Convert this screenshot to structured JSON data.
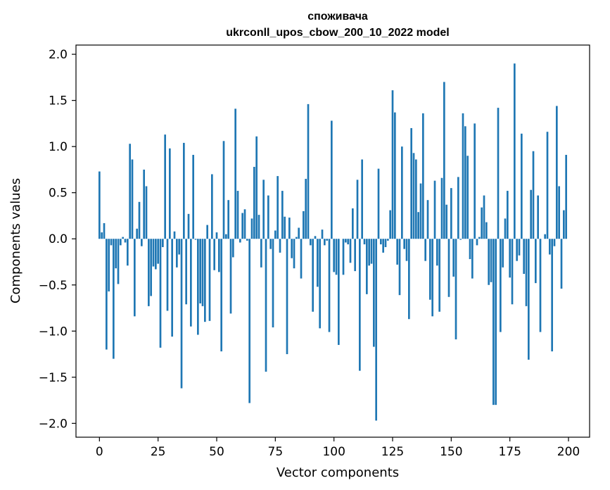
{
  "chart_data": {
    "type": "bar",
    "title": "споживача",
    "subtitle": "ukrconll_upos_cbow_200_10_2022 model",
    "xlabel": "Vector components",
    "ylabel": "Components values",
    "xlim": [
      -10,
      209
    ],
    "ylim": [
      -2.15,
      2.1
    ],
    "xticks": [
      0,
      25,
      50,
      75,
      100,
      125,
      150,
      175,
      200
    ],
    "yticks": [
      -2.0,
      -1.5,
      -1.0,
      -0.5,
      0.0,
      0.5,
      1.0,
      1.5,
      2.0
    ],
    "ytick_labels": [
      "−2.0",
      "−1.5",
      "−1.0",
      "−0.5",
      "0.0",
      "0.5",
      "1.0",
      "1.5",
      "2.0"
    ],
    "bar_color": "#1f77b4",
    "grid": false,
    "x": [
      0,
      1,
      2,
      3,
      4,
      5,
      6,
      7,
      8,
      9,
      10,
      11,
      12,
      13,
      14,
      15,
      16,
      17,
      18,
      19,
      20,
      21,
      22,
      23,
      24,
      25,
      26,
      27,
      28,
      29,
      30,
      31,
      32,
      33,
      34,
      35,
      36,
      37,
      38,
      39,
      40,
      41,
      42,
      43,
      44,
      45,
      46,
      47,
      48,
      49,
      50,
      51,
      52,
      53,
      54,
      55,
      56,
      57,
      58,
      59,
      60,
      61,
      62,
      63,
      64,
      65,
      66,
      67,
      68,
      69,
      70,
      71,
      72,
      73,
      74,
      75,
      76,
      77,
      78,
      79,
      80,
      81,
      82,
      83,
      84,
      85,
      86,
      87,
      88,
      89,
      90,
      91,
      92,
      93,
      94,
      95,
      96,
      97,
      98,
      99,
      100,
      101,
      102,
      103,
      104,
      105,
      106,
      107,
      108,
      109,
      110,
      111,
      112,
      113,
      114,
      115,
      116,
      117,
      118,
      119,
      120,
      121,
      122,
      123,
      124,
      125,
      126,
      127,
      128,
      129,
      130,
      131,
      132,
      133,
      134,
      135,
      136,
      137,
      138,
      139,
      140,
      141,
      142,
      143,
      144,
      145,
      146,
      147,
      148,
      149,
      150,
      151,
      152,
      153,
      154,
      155,
      156,
      157,
      158,
      159,
      160,
      161,
      162,
      163,
      164,
      165,
      166,
      167,
      168,
      169,
      170,
      171,
      172,
      173,
      174,
      175,
      176,
      177,
      178,
      179,
      180,
      181,
      182,
      183,
      184,
      185,
      186,
      187,
      188,
      189,
      190,
      191,
      192,
      193,
      194,
      195,
      196,
      197,
      198,
      199
    ],
    "values": [
      0.73,
      0.07,
      0.17,
      -1.2,
      -0.57,
      -0.07,
      -1.3,
      -0.32,
      -0.49,
      -0.07,
      0.02,
      -0.04,
      -0.29,
      1.03,
      0.86,
      -0.84,
      0.11,
      0.4,
      -0.08,
      0.75,
      0.57,
      -0.73,
      -0.62,
      -0.3,
      -0.33,
      -0.27,
      -1.18,
      -0.09,
      1.13,
      -0.78,
      0.98,
      -1.06,
      0.08,
      -0.31,
      -0.17,
      -1.62,
      1.04,
      -0.71,
      0.27,
      -0.95,
      0.91,
      -0.01,
      -1.04,
      -0.7,
      -0.73,
      -0.9,
      0.15,
      -0.89,
      0.7,
      -0.34,
      0.07,
      -0.36,
      -1.22,
      1.06,
      0.05,
      0.42,
      -0.81,
      -0.2,
      1.41,
      0.52,
      -0.04,
      0.28,
      0.32,
      -0.02,
      -1.78,
      0.22,
      0.78,
      1.11,
      0.26,
      -0.31,
      0.64,
      -1.44,
      0.47,
      -0.11,
      -0.96,
      0.09,
      0.68,
      -0.15,
      0.52,
      0.24,
      -1.25,
      0.23,
      -0.21,
      -0.32,
      0.02,
      0.12,
      -0.43,
      0.3,
      0.65,
      1.46,
      -0.07,
      -0.79,
      0.03,
      -0.52,
      -0.97,
      0.1,
      -0.07,
      -0.02,
      -1.01,
      1.28,
      -0.36,
      -0.39,
      -1.15,
      0.0,
      -0.39,
      -0.04,
      -0.06,
      -0.26,
      0.33,
      -0.35,
      0.64,
      -1.43,
      0.86,
      -0.06,
      -0.6,
      -0.29,
      -0.27,
      -1.17,
      -1.97,
      0.76,
      -0.06,
      -0.15,
      -0.09,
      -0.02,
      0.31,
      1.61,
      1.37,
      -0.28,
      -0.61,
      1.0,
      -0.11,
      -0.24,
      -0.87,
      1.2,
      0.93,
      0.86,
      0.29,
      0.6,
      1.36,
      -0.24,
      0.42,
      -0.66,
      -0.84,
      0.63,
      -0.29,
      -0.79,
      0.66,
      1.7,
      0.37,
      -0.63,
      0.55,
      -0.41,
      -1.09,
      0.67,
      -0.01,
      1.36,
      1.22,
      0.9,
      -0.22,
      -0.43,
      1.25,
      -0.07,
      0.02,
      0.34,
      0.47,
      0.18,
      -0.5,
      -0.47,
      -1.8,
      -1.8,
      1.42,
      -1.01,
      -0.31,
      0.22,
      0.52,
      -0.42,
      -0.71,
      1.9,
      -0.24,
      -0.18,
      1.14,
      -0.38,
      -0.73,
      -1.31,
      0.53,
      0.95,
      -0.48,
      0.47,
      -1.01,
      0.0,
      0.05,
      1.16,
      -0.17,
      -1.22,
      -0.08,
      1.44,
      0.57,
      -0.54,
      0.31,
      0.91
    ]
  }
}
